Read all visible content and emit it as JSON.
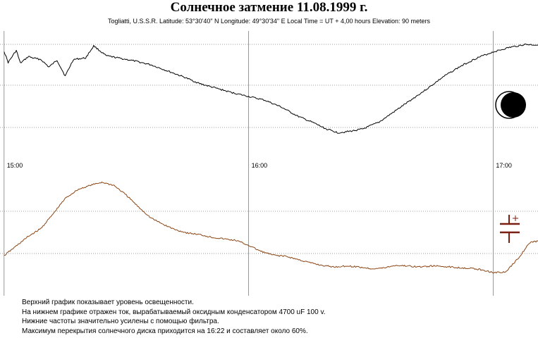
{
  "title": "Солнечное затмение 11.08.1999 г.",
  "subtitle": "Togliatti, U.S.S.R. Latitude: 53°30'40\" N Longitude: 49°30'34\" E Local Time = UT +  4,00 hours  Elevation: 90 meters",
  "notes": [
    "Верхний график показывает уровень освещенности.",
    "На нижнем графике отражен ток, вырабатываемый оксидным конденсатором 4700 uF 100 v.",
    "Нижние частоты значительно усилены с помощью фильтра.",
    "Максимум перекрытия солнечного диска приходится на 16:22 и составляет около 60%."
  ],
  "icons": {
    "upper": "partial-solar-eclipse-icon",
    "lower": "capacitor-symbol-icon"
  },
  "colors": {
    "illumination": "#000000",
    "current": "#8b4513",
    "capacitor_symbol": "#7a1f12",
    "grid": "#808080"
  },
  "chart_data": [
    {
      "type": "line",
      "x_unit": "local time",
      "xlim": [
        "14:59",
        "17:11"
      ],
      "x_ticks": [
        "15:00",
        "16:00",
        "17:00"
      ],
      "y_ticks": [],
      "grid": true,
      "series": [
        {
          "x": [
            "15:00",
            "15:01",
            "15:03",
            "15:04",
            "15:06",
            "15:07",
            "15:09",
            "15:11",
            "15:13",
            "15:15",
            "15:17",
            "15:20",
            "15:22",
            "15:25",
            "15:28",
            "15:32",
            "15:36",
            "15:40",
            "15:44",
            "15:48",
            "15:52",
            "15:56",
            "16:00",
            "16:04",
            "16:08",
            "16:12",
            "16:16",
            "16:19",
            "16:22",
            "16:25",
            "16:28",
            "16:32",
            "16:36",
            "16:40",
            "16:44",
            "16:48",
            "16:52",
            "16:56",
            "17:00",
            "17:04",
            "17:08",
            "17:11"
          ],
          "values": [
            91,
            76,
            92,
            75,
            84,
            82,
            80,
            70,
            79,
            58,
            80,
            82,
            98,
            85,
            82,
            78,
            73,
            65,
            57,
            48,
            42,
            36,
            31,
            26,
            17,
            5,
            -4,
            -12,
            -17,
            -15,
            -12,
            -3,
            12,
            27,
            42,
            58,
            71,
            82,
            90,
            96,
            100,
            99
          ]
        }
      ]
    },
    {
      "type": "line",
      "x_unit": "local time",
      "xlim": [
        "14:59",
        "17:11"
      ],
      "x_ticks": [
        "15:00",
        "16:00",
        "17:00"
      ],
      "y_ticks": [],
      "grid": true,
      "series": [
        {
          "x": [
            "15:00",
            "15:03",
            "15:06",
            "15:09",
            "15:12",
            "15:15",
            "15:18",
            "15:21",
            "15:24",
            "15:27",
            "15:30",
            "15:33",
            "15:36",
            "15:39",
            "15:42",
            "15:45",
            "15:48",
            "15:51",
            "15:54",
            "15:57",
            "16:00",
            "16:03",
            "16:06",
            "16:09",
            "16:12",
            "16:15",
            "16:18",
            "16:21",
            "16:24",
            "16:27",
            "16:30",
            "16:33",
            "16:36",
            "16:39",
            "16:42",
            "16:45",
            "16:48",
            "16:51",
            "16:54",
            "16:57",
            "17:00",
            "17:03",
            "17:06",
            "17:09",
            "17:11"
          ],
          "values": [
            -14,
            4,
            22,
            36,
            63,
            92,
            108,
            116,
            122,
            116,
            98,
            76,
            56,
            44,
            34,
            28,
            25,
            20,
            17,
            14,
            5,
            -6,
            -13,
            -15,
            -21,
            -27,
            -32,
            -35,
            -33,
            -35,
            -38,
            -37,
            -32,
            -33,
            -35,
            -33,
            -34,
            -36,
            -37,
            -40,
            -45,
            -45,
            -20,
            10,
            13
          ]
        }
      ]
    }
  ]
}
